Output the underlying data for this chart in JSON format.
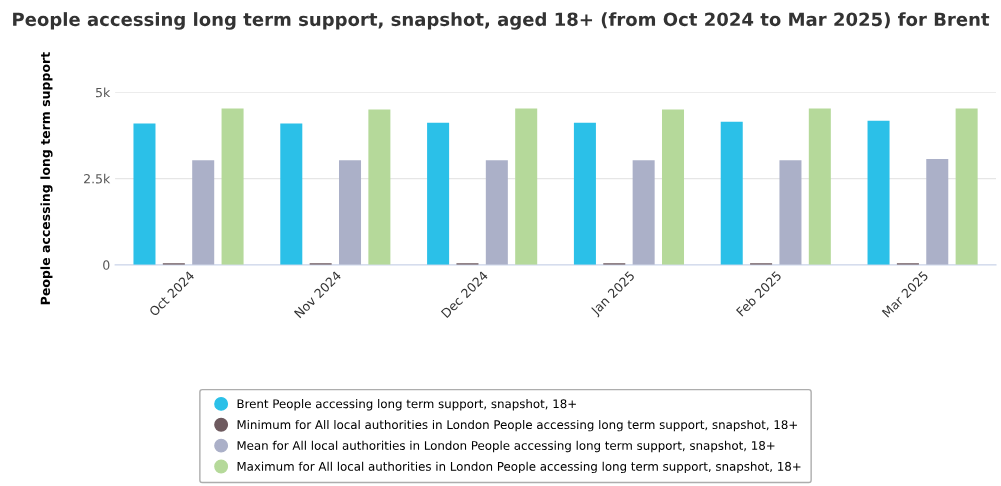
{
  "chart_data": {
    "type": "bar",
    "title": "People accessing long term support, snapshot, aged 18+ (from Oct 2024 to Mar 2025) for Brent",
    "ylabel": "People accessing long term support",
    "categories": [
      "Oct 2024",
      "Nov 2024",
      "Dec 2024",
      "Jan 2025",
      "Feb 2025",
      "Mar 2025"
    ],
    "series": [
      {
        "name": "Brent People accessing long term support, snapshot, 18+",
        "color": "#2bc0e8",
        "values": [
          4100,
          4100,
          4120,
          4120,
          4150,
          4180
        ]
      },
      {
        "name": "Minimum for All local authorities in London People accessing long term support, snapshot, 18+",
        "color": "#6e5a5f",
        "values": [
          50,
          50,
          50,
          50,
          50,
          50
        ]
      },
      {
        "name": "Mean for All local authorities in London People accessing long term support, snapshot, 18+",
        "color": "#abb0c8",
        "values": [
          3030,
          3030,
          3030,
          3030,
          3030,
          3070
        ]
      },
      {
        "name": "Maximum for All local authorities in London People accessing long term support, snapshot, 18+",
        "color": "#b5d99a",
        "values": [
          4530,
          4500,
          4530,
          4500,
          4530,
          4530
        ]
      }
    ],
    "ylim": [
      0,
      5000
    ],
    "yticks": [
      {
        "value": 0,
        "label": "0"
      },
      {
        "value": 2500,
        "label": "2.5k"
      },
      {
        "value": 5000,
        "label": "5k"
      }
    ],
    "grid": "y",
    "legend": "bottom"
  }
}
